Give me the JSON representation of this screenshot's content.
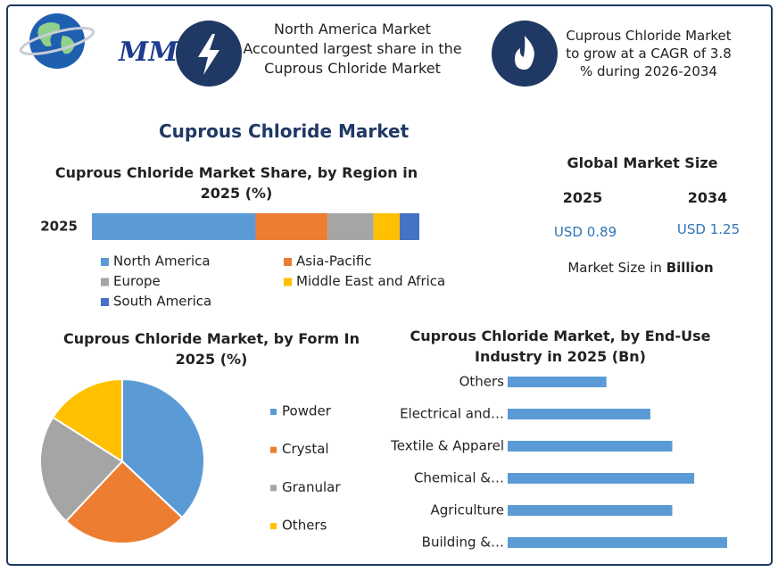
{
  "header": {
    "logo": "MMR",
    "highlights": [
      "North America Market Accounted largest share in the Cuprous Chloride Market",
      "Cuprous Chloride Market to grow at a CAGR of 3.8 % during 2026-2034"
    ]
  },
  "title": "Cuprous Chloride Market",
  "market_size": {
    "title": "Global Market Size",
    "items": [
      {
        "year": "2025",
        "value": "USD 0.89"
      },
      {
        "year": "2034",
        "value": "USD 1.25"
      }
    ],
    "note_prefix": "Market Size in",
    "note_unit": "Billion"
  },
  "chart_data": [
    {
      "type": "stacked_bar",
      "title": "Cuprous Chloride Market Share, by Region in 2025 (%)",
      "categories": [
        "2025"
      ],
      "series": [
        {
          "name": "North America",
          "color": "#5b9bd5",
          "values": [
            50
          ]
        },
        {
          "name": "Asia-Pacific",
          "color": "#ed7d31",
          "values": [
            22
          ]
        },
        {
          "name": "Europe",
          "color": "#a5a5a5",
          "values": [
            14
          ]
        },
        {
          "name": "Middle East and Africa",
          "color": "#ffc000",
          "values": [
            8
          ]
        },
        {
          "name": "South America",
          "color": "#4472c4",
          "values": [
            6
          ]
        }
      ]
    },
    {
      "type": "pie",
      "title": "Cuprous Chloride Market, by Form In 2025 (%)",
      "categories": [
        "Powder",
        "Crystal",
        "Granular",
        "Others"
      ],
      "values": [
        37,
        25,
        22,
        16
      ],
      "colors": [
        "#5b9bd5",
        "#ed7d31",
        "#a5a5a5",
        "#ffc000"
      ]
    },
    {
      "type": "bar",
      "title": "Cuprous Chloride Market, by End-Use Industry in 2025 (Bn)",
      "categories": [
        "Others",
        "Electrical and…",
        "Textile & Apparel",
        "Chemical &…",
        "Agriculture",
        "Building &…"
      ],
      "values": [
        0.09,
        0.13,
        0.15,
        0.17,
        0.15,
        0.2
      ],
      "color": "#5b9bd5"
    }
  ]
}
